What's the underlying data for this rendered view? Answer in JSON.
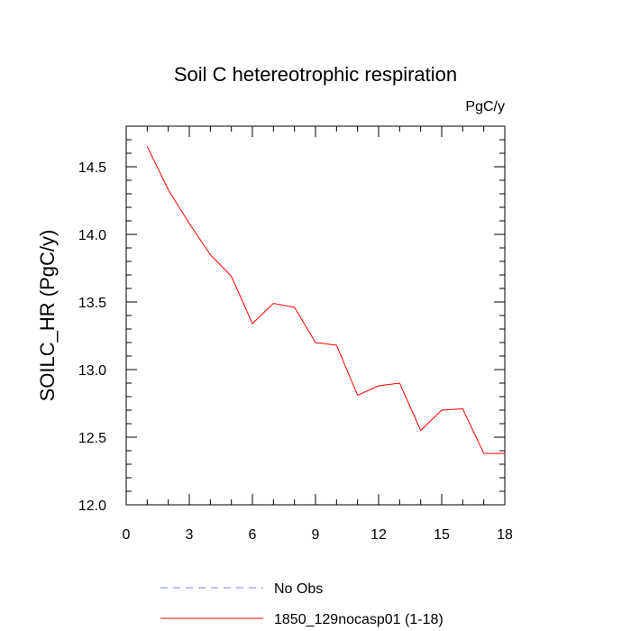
{
  "chart_data": {
    "type": "line",
    "title": "Soil C hetereotrophic respiration",
    "units_label": "PgC/y",
    "xlabel": "",
    "ylabel": "SOILC_HR  (PgC/y)",
    "xlim": [
      0,
      18
    ],
    "ylim": [
      12.0,
      14.8
    ],
    "x_ticks": [
      0,
      3,
      6,
      9,
      12,
      15,
      18
    ],
    "x_tick_labels": [
      "0",
      "3",
      "6",
      "9",
      "12",
      "15",
      "18"
    ],
    "y_ticks": [
      12.0,
      12.5,
      13.0,
      13.5,
      14.0,
      14.5
    ],
    "y_tick_labels": [
      "12.0",
      "12.5",
      "13.0",
      "13.5",
      "14.0",
      "14.5"
    ],
    "grid": false,
    "legend_position": "bottom",
    "series": [
      {
        "name": "1850_129nocasp01 (1-18)",
        "color": "#ff0000",
        "dash": "solid",
        "x": [
          1,
          2,
          3,
          4,
          5,
          6,
          7,
          8,
          9,
          10,
          11,
          12,
          13,
          14,
          15,
          16,
          17,
          18
        ],
        "values": [
          14.65,
          14.33,
          14.08,
          13.85,
          13.69,
          13.34,
          13.49,
          13.46,
          13.2,
          13.18,
          12.81,
          12.88,
          12.9,
          12.55,
          12.7,
          12.71,
          12.38,
          12.38
        ]
      }
    ],
    "legend": [
      {
        "label": "No Obs",
        "color": "#8080ff",
        "dash": "dashed"
      },
      {
        "label": "1850_129nocasp01 (1-18)",
        "color": "#ff0000",
        "dash": "solid"
      }
    ]
  }
}
